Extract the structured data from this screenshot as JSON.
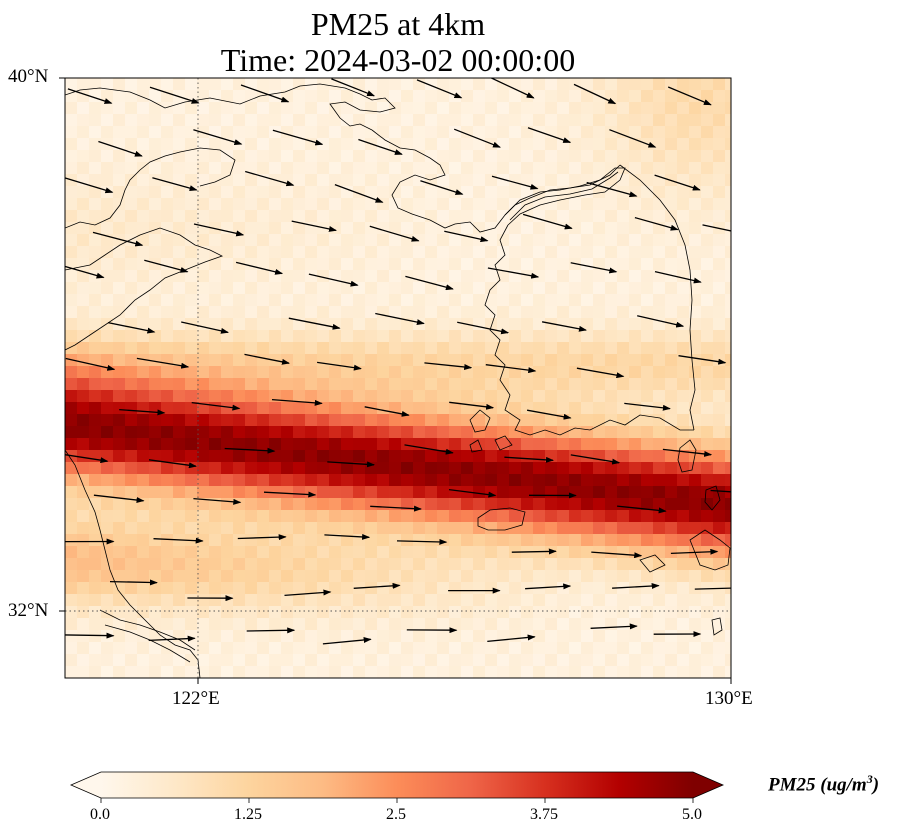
{
  "title": {
    "line1": "PM25 at 4km",
    "line2": "Time: 2024-03-02 00:00:00"
  },
  "map": {
    "extent": {
      "lon_min": 120,
      "lon_max": 130,
      "lat_min": 31,
      "lat_max": 40
    },
    "lat_ticks": [
      {
        "value": 40,
        "label": "40°N"
      },
      {
        "value": 32,
        "label": "32°N"
      }
    ],
    "lon_ticks": [
      {
        "value": 122,
        "label": "122°E"
      },
      {
        "value": 130,
        "label": "130°E"
      }
    ],
    "gridlines": "dotted",
    "field": "PM25",
    "plume_description": "high-concentration band running from west (~34.5°N) to east-southeast (~33.8°N at 130°E)",
    "wind_vectors": "east-southeast to east, stronger in north, turning eastward in south"
  },
  "colorbar": {
    "title": "PM25 (ug/m$^3$)",
    "title_text": "PM25 (ug/m",
    "title_sup": "3",
    "title_tail": ")",
    "ticks": [
      "0.0",
      "1.25",
      "2.5",
      "3.75",
      "5.0"
    ],
    "min": 0,
    "max": 5,
    "extend": "both",
    "colormap": "OrRd",
    "colors": [
      "#fff7ec",
      "#fee8c8",
      "#fdd49e",
      "#fdbb84",
      "#fc8d59",
      "#ef6548",
      "#d7301f",
      "#b30000",
      "#7f0000"
    ]
  }
}
